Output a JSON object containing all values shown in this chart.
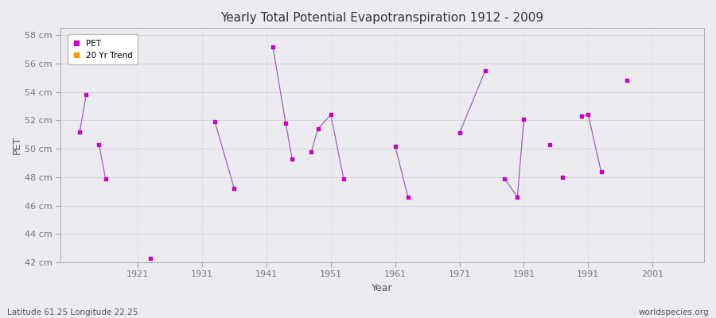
{
  "title": "Yearly Total Potential Evapotranspiration 1912 - 2009",
  "xlabel": "Year",
  "ylabel": "PET",
  "footnote_left": "Latitude 61.25 Longitude 22.25",
  "footnote_right": "worldspecies.org",
  "ylim": [
    42,
    58.5
  ],
  "yticks": [
    42,
    44,
    46,
    48,
    50,
    52,
    54,
    56,
    58
  ],
  "ytick_labels": [
    "42 cm",
    "44 cm",
    "46 cm",
    "48 cm",
    "50 cm",
    "52 cm",
    "54 cm",
    "56 cm",
    "58 cm"
  ],
  "xlim": [
    1909,
    2009
  ],
  "xticks": [
    1921,
    1931,
    1941,
    1951,
    1961,
    1971,
    1981,
    1991,
    2001
  ],
  "background_color": "#ebebf0",
  "plot_bg_color": "#ebebf0",
  "grid_color": "#cccccc",
  "pet_color": "#cc00cc",
  "trend_color": "#ff9900",
  "line_color": "#9966aa",
  "pet_points": [
    [
      1912,
      51.2
    ],
    [
      1913,
      53.8
    ],
    [
      1915,
      50.3
    ],
    [
      1916,
      47.9
    ],
    [
      1923,
      42.3
    ],
    [
      1933,
      51.9
    ],
    [
      1936,
      47.2
    ],
    [
      1942,
      57.2
    ],
    [
      1944,
      51.8
    ],
    [
      1945,
      49.3
    ],
    [
      1948,
      49.8
    ],
    [
      1949,
      51.4
    ],
    [
      1951,
      52.4
    ],
    [
      1953,
      47.9
    ],
    [
      1961,
      50.2
    ],
    [
      1963,
      46.6
    ],
    [
      1971,
      51.1
    ],
    [
      1975,
      55.5
    ],
    [
      1978,
      47.9
    ],
    [
      1980,
      46.6
    ],
    [
      1981,
      52.1
    ],
    [
      1985,
      50.3
    ],
    [
      1987,
      48.0
    ],
    [
      1990,
      52.3
    ],
    [
      1991,
      52.4
    ],
    [
      1993,
      48.4
    ],
    [
      1997,
      54.8
    ]
  ],
  "segments": [
    [
      [
        1912,
        51.2
      ],
      [
        1913,
        53.8
      ]
    ],
    [
      [
        1915,
        50.3
      ],
      [
        1916,
        47.9
      ]
    ],
    [
      [
        1933,
        51.9
      ],
      [
        1936,
        47.2
      ]
    ],
    [
      [
        1942,
        57.2
      ],
      [
        1944,
        51.8
      ]
    ],
    [
      [
        1944,
        51.8
      ],
      [
        1945,
        49.3
      ]
    ],
    [
      [
        1948,
        49.8
      ],
      [
        1949,
        51.4
      ]
    ],
    [
      [
        1949,
        51.4
      ],
      [
        1951,
        52.4
      ]
    ],
    [
      [
        1951,
        52.4
      ],
      [
        1953,
        47.9
      ]
    ],
    [
      [
        1961,
        50.2
      ],
      [
        1963,
        46.6
      ]
    ],
    [
      [
        1971,
        51.1
      ],
      [
        1975,
        55.5
      ]
    ],
    [
      [
        1978,
        47.9
      ],
      [
        1980,
        46.6
      ]
    ],
    [
      [
        1980,
        46.6
      ],
      [
        1981,
        52.1
      ]
    ],
    [
      [
        1990,
        52.3
      ],
      [
        1991,
        52.4
      ]
    ],
    [
      [
        1991,
        52.4
      ],
      [
        1993,
        48.4
      ]
    ]
  ]
}
